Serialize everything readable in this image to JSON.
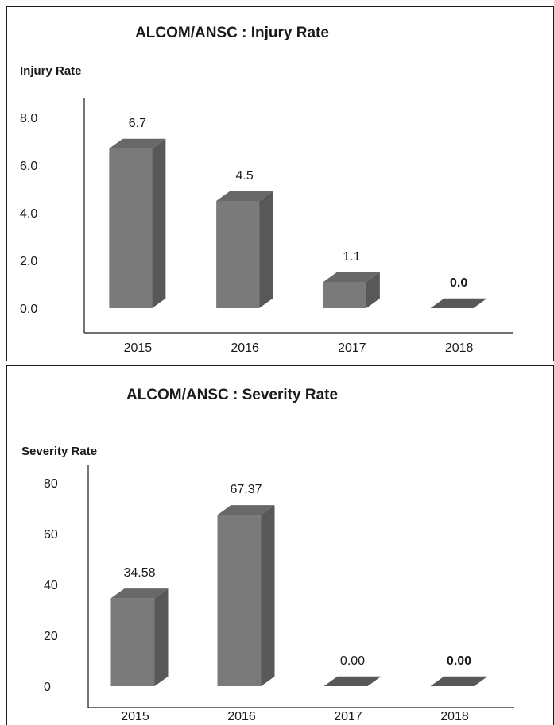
{
  "chart_data": [
    {
      "type": "bar",
      "title": "ALCOM/ANSC : Injury Rate",
      "ylabel": "Injury Rate",
      "xlabel": "",
      "categories": [
        "2015",
        "2016",
        "2017",
        "2018"
      ],
      "values": [
        6.7,
        4.5,
        1.1,
        0.0
      ],
      "value_labels": [
        "6.7",
        "4.5",
        "1.1",
        "0.0"
      ],
      "bold_value_labels": [
        false,
        false,
        false,
        true
      ],
      "yticks": [
        "0.0",
        "2.0",
        "4.0",
        "6.0",
        "8.0"
      ],
      "ylim": [
        0,
        8
      ],
      "grid": false,
      "legend": "none",
      "style": "3d",
      "bar_color": "#7a7a7a"
    },
    {
      "type": "bar",
      "title": "ALCOM/ANSC : Severity Rate",
      "ylabel": "Severity Rate",
      "xlabel": "",
      "categories": [
        "2015",
        "2016",
        "2017",
        "2018"
      ],
      "values": [
        34.58,
        67.37,
        0.0,
        0.0
      ],
      "value_labels": [
        "34.58",
        "67.37",
        "0.00",
        "0.00"
      ],
      "bold_value_labels": [
        false,
        false,
        false,
        true
      ],
      "yticks": [
        "0",
        "20",
        "40",
        "60",
        "80"
      ],
      "ylim": [
        0,
        80
      ],
      "grid": false,
      "legend": "none",
      "style": "3d",
      "bar_color": "#7a7a7a"
    }
  ]
}
